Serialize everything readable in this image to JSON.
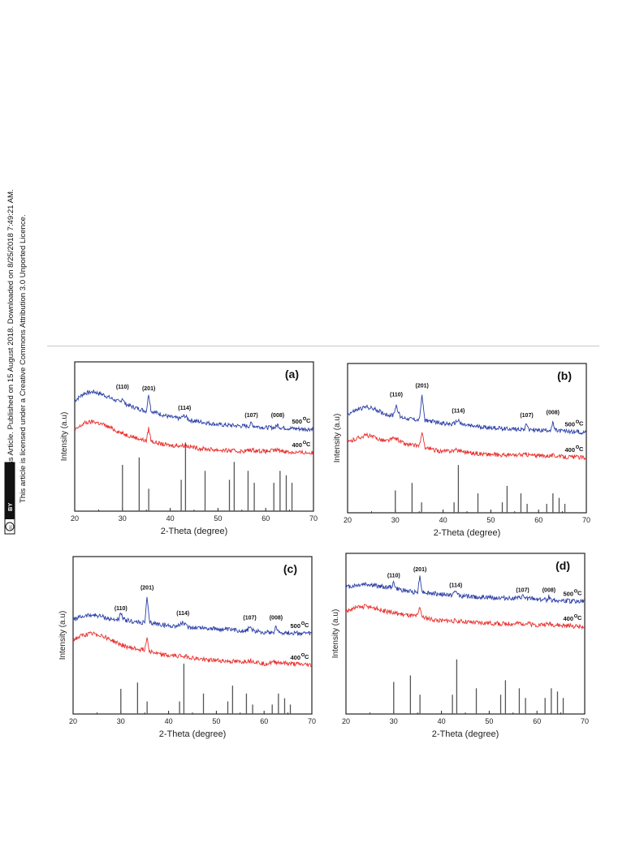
{
  "page": {
    "side_line1": "Open Access Article. Published on 15 August 2018. Downloaded on 8/25/2018 7:49:21 AM.",
    "side_line2": "This article is licensed under a Creative Commons Attribution 3.0 Unported Licence.",
    "cc_badge": "cc",
    "cc_by": "BY"
  },
  "colors": {
    "upper": "#2b3fa6",
    "lower": "#e8312e",
    "axis": "#222222",
    "ref": "#555555"
  },
  "chart_data": [
    {
      "type": "line",
      "label": "(a)",
      "xlabel": "2-Theta (degree)",
      "ylabel": "Intensity (a.u)",
      "xlim": [
        20,
        70
      ],
      "xticks": [
        20,
        30,
        40,
        50,
        60,
        70
      ],
      "series": [
        {
          "name": "500 °C",
          "temp_value": "500",
          "unit": "C",
          "x": [
            20,
            22,
            24,
            26,
            28,
            29.5,
            30,
            30.5,
            32,
            34,
            35,
            35.5,
            36,
            38,
            40,
            42,
            43,
            44,
            46,
            50,
            55,
            56.5,
            57,
            57.5,
            60,
            62,
            62.5,
            63,
            65,
            68,
            70
          ],
          "y": [
            0.74,
            0.79,
            0.8,
            0.78,
            0.75,
            0.73,
            0.76,
            0.72,
            0.7,
            0.68,
            0.67,
            0.79,
            0.67,
            0.65,
            0.63,
            0.62,
            0.64,
            0.61,
            0.6,
            0.58,
            0.57,
            0.57,
            0.59,
            0.57,
            0.56,
            0.56,
            0.58,
            0.56,
            0.555,
            0.55,
            0.55
          ]
        },
        {
          "name": "400 °C",
          "temp_value": "400",
          "unit": "C",
          "x": [
            20,
            22,
            24,
            26,
            28,
            30,
            32,
            34,
            35,
            35.5,
            36,
            38,
            40,
            43,
            46,
            50,
            55,
            57,
            60,
            62.5,
            65,
            70
          ],
          "y": [
            0.54,
            0.59,
            0.6,
            0.58,
            0.55,
            0.52,
            0.5,
            0.48,
            0.47,
            0.56,
            0.47,
            0.45,
            0.44,
            0.44,
            0.42,
            0.41,
            0.4,
            0.41,
            0.4,
            0.41,
            0.395,
            0.39
          ]
        }
      ],
      "peaks": [
        {
          "label": "(110)",
          "x": 30,
          "y": 0.82
        },
        {
          "label": "(201)",
          "x": 35.5,
          "y": 0.81
        },
        {
          "label": "(114)",
          "x": 43,
          "y": 0.68
        },
        {
          "label": "(107)",
          "x": 57,
          "y": 0.63
        },
        {
          "label": "(008)",
          "x": 62.5,
          "y": 0.63
        }
      ],
      "reference": {
        "x": [
          30,
          33.5,
          35.5,
          42.3,
          43.2,
          47.3,
          52.4,
          53.4,
          56.3,
          57.6,
          61.7,
          63,
          64.3,
          65.5
        ],
        "h": [
          0.31,
          0.36,
          0.15,
          0.21,
          0.46,
          0.27,
          0.21,
          0.33,
          0.27,
          0.19,
          0.19,
          0.27,
          0.24,
          0.19
        ]
      }
    },
    {
      "type": "line",
      "label": "(b)",
      "xlabel": "2-Theta (degree)",
      "ylabel": "Intensity (a.u)",
      "xlim": [
        20,
        70
      ],
      "xticks": [
        20,
        30,
        40,
        50,
        60,
        70
      ],
      "series": [
        {
          "name": "500 °C",
          "temp_value": "500",
          "unit": "C",
          "x": [
            20,
            22,
            24,
            26,
            28,
            29.5,
            30.2,
            31,
            33,
            35,
            35.6,
            36.2,
            38,
            40,
            42,
            43.2,
            44,
            46,
            50,
            55,
            57,
            57.5,
            58,
            60,
            62.5,
            63,
            63.5,
            66,
            70
          ],
          "y": [
            0.66,
            0.69,
            0.71,
            0.69,
            0.66,
            0.65,
            0.72,
            0.64,
            0.63,
            0.62,
            0.78,
            0.62,
            0.61,
            0.6,
            0.59,
            0.62,
            0.59,
            0.58,
            0.57,
            0.56,
            0.56,
            0.6,
            0.56,
            0.55,
            0.555,
            0.6,
            0.55,
            0.545,
            0.54
          ]
        },
        {
          "name": "400 °C",
          "temp_value": "400",
          "unit": "C",
          "x": [
            20,
            22,
            24,
            26,
            28,
            30,
            32,
            34,
            35,
            35.6,
            36.2,
            38,
            40,
            43,
            46,
            50,
            55,
            57.5,
            60,
            63,
            65,
            70
          ],
          "y": [
            0.47,
            0.5,
            0.52,
            0.5,
            0.48,
            0.5,
            0.46,
            0.45,
            0.45,
            0.53,
            0.44,
            0.42,
            0.41,
            0.42,
            0.4,
            0.39,
            0.385,
            0.39,
            0.38,
            0.385,
            0.375,
            0.37
          ]
        }
      ],
      "peaks": [
        {
          "label": "(110)",
          "x": 30.2,
          "y": 0.78
        },
        {
          "label": "(201)",
          "x": 35.6,
          "y": 0.84
        },
        {
          "label": "(114)",
          "x": 43.2,
          "y": 0.67
        },
        {
          "label": "(107)",
          "x": 57.5,
          "y": 0.64
        },
        {
          "label": "(008)",
          "x": 63,
          "y": 0.66
        }
      ],
      "reference": {
        "x": [
          30,
          33.5,
          35.5,
          42.3,
          43.2,
          47.3,
          52.4,
          53.4,
          56.3,
          57.6,
          61.7,
          63,
          64.3,
          65.5
        ],
        "h": [
          0.15,
          0.2,
          0.07,
          0.07,
          0.32,
          0.13,
          0.07,
          0.18,
          0.13,
          0.06,
          0.06,
          0.13,
          0.1,
          0.06
        ]
      }
    },
    {
      "type": "line",
      "label": "(c)",
      "xlabel": "2-Theta (degree)",
      "ylabel": "Intensity (a.u)",
      "xlim": [
        20,
        70
      ],
      "xticks": [
        20,
        30,
        40,
        50,
        60,
        70
      ],
      "series": [
        {
          "name": "500 °C",
          "temp_value": "500",
          "unit": "C",
          "x": [
            20,
            22,
            24,
            26,
            28,
            29.5,
            30,
            30.5,
            32,
            34,
            35,
            35.5,
            36,
            38,
            40,
            42,
            43,
            44,
            46,
            50,
            55,
            56.5,
            57,
            57.5,
            60,
            62,
            62.5,
            63,
            65,
            70
          ],
          "y": [
            0.6,
            0.62,
            0.63,
            0.62,
            0.6,
            0.6,
            0.64,
            0.6,
            0.59,
            0.58,
            0.58,
            0.74,
            0.58,
            0.57,
            0.56,
            0.56,
            0.58,
            0.55,
            0.55,
            0.54,
            0.53,
            0.53,
            0.56,
            0.53,
            0.52,
            0.52,
            0.56,
            0.52,
            0.515,
            0.51
          ]
        },
        {
          "name": "400 °C",
          "temp_value": "400",
          "unit": "C",
          "x": [
            20,
            22,
            24,
            26,
            28,
            30,
            32,
            34,
            35,
            35.5,
            36,
            38,
            40,
            43,
            46,
            50,
            55,
            57,
            60,
            62.5,
            65,
            70
          ],
          "y": [
            0.47,
            0.5,
            0.51,
            0.5,
            0.47,
            0.44,
            0.42,
            0.41,
            0.41,
            0.49,
            0.4,
            0.38,
            0.37,
            0.37,
            0.35,
            0.34,
            0.33,
            0.34,
            0.32,
            0.33,
            0.32,
            0.31
          ]
        }
      ],
      "peaks": [
        {
          "label": "(110)",
          "x": 30,
          "y": 0.66
        },
        {
          "label": "(201)",
          "x": 35.5,
          "y": 0.79
        },
        {
          "label": "(114)",
          "x": 43,
          "y": 0.63
        },
        {
          "label": "(107)",
          "x": 57,
          "y": 0.6
        },
        {
          "label": "(008)",
          "x": 62.5,
          "y": 0.6
        }
      ],
      "reference": {
        "x": [
          30,
          33.5,
          35.5,
          42.3,
          43.2,
          47.3,
          52.4,
          53.4,
          56.3,
          57.6,
          61.7,
          63,
          64.3,
          65.5
        ],
        "h": [
          0.16,
          0.2,
          0.08,
          0.08,
          0.32,
          0.13,
          0.08,
          0.18,
          0.13,
          0.06,
          0.06,
          0.13,
          0.1,
          0.06
        ]
      }
    },
    {
      "type": "line",
      "label": "(d)",
      "xlabel": "2-Theta (degree)",
      "ylabel": "Intensity (a.u)",
      "xlim": [
        20,
        70
      ],
      "xticks": [
        20,
        30,
        40,
        50,
        60,
        70
      ],
      "series": [
        {
          "name": "500 °C",
          "temp_value": "500",
          "unit": "C",
          "x": [
            20,
            22,
            24,
            26,
            28,
            29.5,
            30,
            30.5,
            32,
            34,
            35,
            35.5,
            36,
            38,
            40,
            42,
            43,
            44,
            46,
            50,
            55,
            56.5,
            57,
            57.5,
            60,
            62,
            62.5,
            63,
            65,
            70
          ],
          "y": [
            0.79,
            0.8,
            0.81,
            0.8,
            0.79,
            0.79,
            0.82,
            0.78,
            0.77,
            0.76,
            0.76,
            0.86,
            0.76,
            0.75,
            0.745,
            0.74,
            0.76,
            0.735,
            0.73,
            0.725,
            0.72,
            0.72,
            0.735,
            0.72,
            0.715,
            0.71,
            0.73,
            0.71,
            0.705,
            0.7
          ]
        },
        {
          "name": "400 °C",
          "temp_value": "400",
          "unit": "C",
          "x": [
            20,
            22,
            24,
            26,
            28,
            30,
            32,
            34,
            35,
            35.5,
            36,
            38,
            40,
            43,
            46,
            50,
            55,
            57,
            60,
            62.5,
            65,
            70
          ],
          "y": [
            0.64,
            0.66,
            0.67,
            0.66,
            0.64,
            0.63,
            0.62,
            0.61,
            0.61,
            0.67,
            0.6,
            0.59,
            0.58,
            0.58,
            0.57,
            0.565,
            0.56,
            0.565,
            0.555,
            0.56,
            0.55,
            0.545
          ]
        }
      ],
      "peaks": [
        {
          "label": "(110)",
          "x": 30,
          "y": 0.85
        },
        {
          "label": "(201)",
          "x": 35.5,
          "y": 0.89
        },
        {
          "label": "(114)",
          "x": 43,
          "y": 0.79
        },
        {
          "label": "(107)",
          "x": 57,
          "y": 0.76
        },
        {
          "label": "(008)",
          "x": 62.5,
          "y": 0.76
        }
      ],
      "reference": {
        "x": [
          30,
          33.5,
          35.5,
          42.3,
          43.2,
          47.3,
          52.4,
          53.4,
          56.3,
          57.6,
          61.7,
          63,
          64.3,
          65.5
        ],
        "h": [
          0.2,
          0.24,
          0.12,
          0.12,
          0.34,
          0.16,
          0.12,
          0.21,
          0.16,
          0.1,
          0.1,
          0.16,
          0.14,
          0.1
        ]
      }
    }
  ]
}
